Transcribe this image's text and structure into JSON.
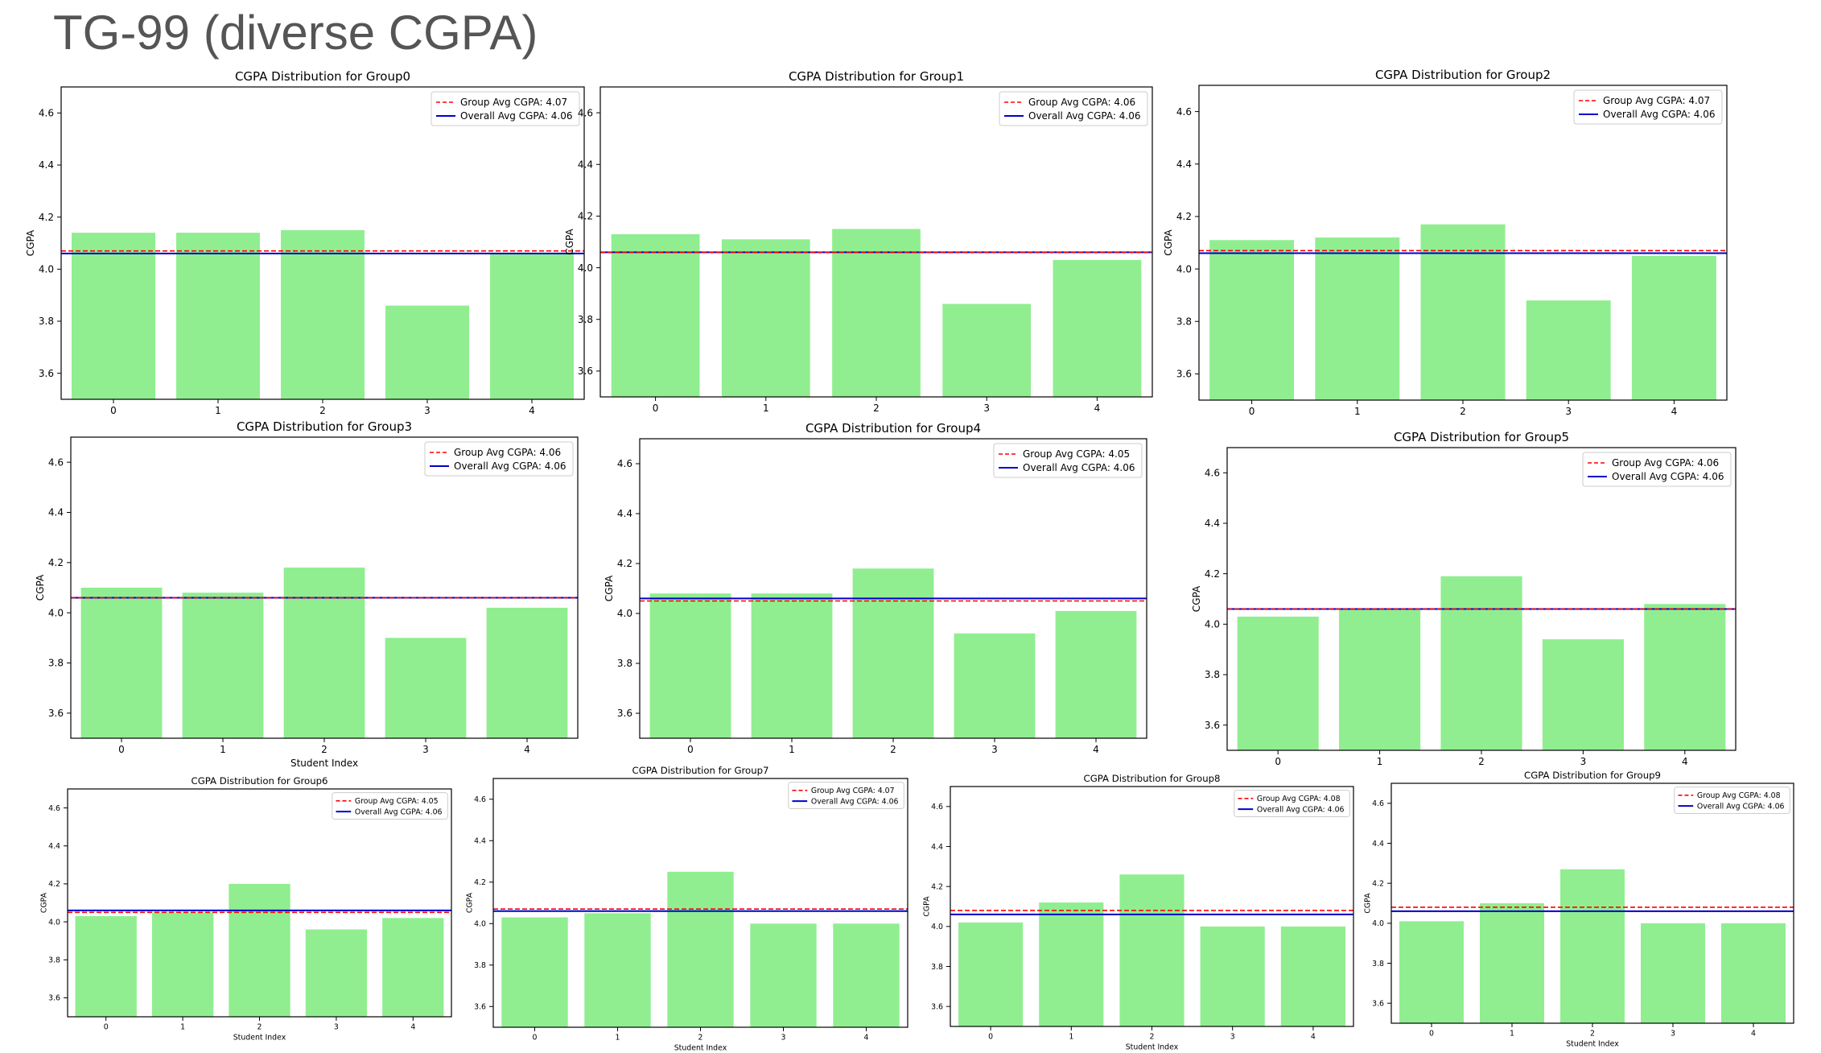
{
  "page_title": "TG-99 (diverse CGPA)",
  "colors": {
    "bar": "#90ee90",
    "group_avg": "#ff0000",
    "overall_avg": "#0000cc"
  },
  "chart_data": [
    {
      "type": "bar",
      "title": "CGPA Distribution for Group0",
      "xlabel": "",
      "ylabel": "CGPA",
      "categories": [
        "0",
        "1",
        "2",
        "3",
        "4"
      ],
      "values": [
        4.14,
        4.14,
        4.15,
        3.86,
        4.06
      ],
      "ylim": [
        3.5,
        4.7
      ],
      "yticks": [
        "3.6",
        "3.8",
        "4.0",
        "4.2",
        "4.4",
        "4.6"
      ],
      "group_avg": 4.07,
      "overall_avg": 4.06,
      "legend": [
        "Group Avg CGPA: 4.07",
        "Overall Avg CGPA: 4.06"
      ],
      "legend_position": "top-right"
    },
    {
      "type": "bar",
      "title": "CGPA Distribution for Group1",
      "xlabel": "",
      "ylabel": "CGPA",
      "categories": [
        "0",
        "1",
        "2",
        "3",
        "4"
      ],
      "values": [
        4.13,
        4.11,
        4.15,
        3.86,
        4.03
      ],
      "ylim": [
        3.5,
        4.7
      ],
      "yticks": [
        "3.6",
        "3.8",
        "4.0",
        "4.2",
        "4.4",
        "4.6"
      ],
      "group_avg": 4.06,
      "overall_avg": 4.06,
      "legend": [
        "Group Avg CGPA: 4.06",
        "Overall Avg CGPA: 4.06"
      ],
      "legend_position": "top-right"
    },
    {
      "type": "bar",
      "title": "CGPA Distribution for Group2",
      "xlabel": "",
      "ylabel": "CGPA",
      "categories": [
        "0",
        "1",
        "2",
        "3",
        "4"
      ],
      "values": [
        4.11,
        4.12,
        4.17,
        3.88,
        4.05
      ],
      "ylim": [
        3.5,
        4.7
      ],
      "yticks": [
        "3.6",
        "3.8",
        "4.0",
        "4.2",
        "4.4",
        "4.6"
      ],
      "group_avg": 4.07,
      "overall_avg": 4.06,
      "legend": [
        "Group Avg CGPA: 4.07",
        "Overall Avg CGPA: 4.06"
      ],
      "legend_position": "top-right"
    },
    {
      "type": "bar",
      "title": "CGPA Distribution for Group3",
      "xlabel": "Student Index",
      "ylabel": "CGPA",
      "categories": [
        "0",
        "1",
        "2",
        "3",
        "4"
      ],
      "values": [
        4.1,
        4.08,
        4.18,
        3.9,
        4.02
      ],
      "ylim": [
        3.5,
        4.7
      ],
      "yticks": [
        "3.6",
        "3.8",
        "4.0",
        "4.2",
        "4.4",
        "4.6"
      ],
      "group_avg": 4.06,
      "overall_avg": 4.06,
      "legend": [
        "Group Avg CGPA: 4.06",
        "Overall Avg CGPA: 4.06"
      ],
      "legend_position": "top-right"
    },
    {
      "type": "bar",
      "title": "CGPA Distribution for Group4",
      "xlabel": "",
      "ylabel": "CGPA",
      "categories": [
        "0",
        "1",
        "2",
        "3",
        "4"
      ],
      "values": [
        4.08,
        4.08,
        4.18,
        3.92,
        4.01
      ],
      "ylim": [
        3.5,
        4.7
      ],
      "yticks": [
        "3.6",
        "3.8",
        "4.0",
        "4.2",
        "4.4",
        "4.6"
      ],
      "group_avg": 4.05,
      "overall_avg": 4.06,
      "legend": [
        "Group Avg CGPA: 4.05",
        "Overall Avg CGPA: 4.06"
      ],
      "legend_position": "top-right"
    },
    {
      "type": "bar",
      "title": "CGPA Distribution for Group5",
      "xlabel": "",
      "ylabel": "CGPA",
      "categories": [
        "0",
        "1",
        "2",
        "3",
        "4"
      ],
      "values": [
        4.03,
        4.06,
        4.19,
        3.94,
        4.08
      ],
      "ylim": [
        3.5,
        4.7
      ],
      "yticks": [
        "3.6",
        "3.8",
        "4.0",
        "4.2",
        "4.4",
        "4.6"
      ],
      "group_avg": 4.06,
      "overall_avg": 4.06,
      "legend": [
        "Group Avg CGPA: 4.06",
        "Overall Avg CGPA: 4.06"
      ],
      "legend_position": "top-right"
    },
    {
      "type": "bar",
      "title": "CGPA Distribution for Group6",
      "xlabel": "Student Index",
      "ylabel": "CGPA",
      "categories": [
        "0",
        "1",
        "2",
        "3",
        "4"
      ],
      "values": [
        4.03,
        4.05,
        4.2,
        3.96,
        4.02
      ],
      "ylim": [
        3.5,
        4.7
      ],
      "yticks": [
        "3.6",
        "3.8",
        "4.0",
        "4.2",
        "4.4",
        "4.6"
      ],
      "group_avg": 4.05,
      "overall_avg": 4.06,
      "legend": [
        "Group Avg CGPA: 4.05",
        "Overall Avg CGPA: 4.06"
      ],
      "legend_position": "top-right"
    },
    {
      "type": "bar",
      "title": "CGPA Distribution for Group7",
      "xlabel": "Student Index",
      "ylabel": "CGPA",
      "categories": [
        "0",
        "1",
        "2",
        "3",
        "4"
      ],
      "values": [
        4.03,
        4.05,
        4.25,
        4.0,
        4.0
      ],
      "ylim": [
        3.5,
        4.7
      ],
      "yticks": [
        "3.6",
        "3.8",
        "4.0",
        "4.2",
        "4.4",
        "4.6"
      ],
      "group_avg": 4.07,
      "overall_avg": 4.06,
      "legend": [
        "Group Avg CGPA: 4.07",
        "Overall Avg CGPA: 4.06"
      ],
      "legend_position": "top-right"
    },
    {
      "type": "bar",
      "title": "CGPA Distribution for Group8",
      "xlabel": "Student Index",
      "ylabel": "CGPA",
      "categories": [
        "0",
        "1",
        "2",
        "3",
        "4"
      ],
      "values": [
        4.02,
        4.12,
        4.26,
        4.0,
        4.0
      ],
      "ylim": [
        3.5,
        4.7
      ],
      "yticks": [
        "3.6",
        "3.8",
        "4.0",
        "4.2",
        "4.4",
        "4.6"
      ],
      "group_avg": 4.08,
      "overall_avg": 4.06,
      "legend": [
        "Group Avg CGPA: 4.08",
        "Overall Avg CGPA: 4.06"
      ],
      "legend_position": "top-right"
    },
    {
      "type": "bar",
      "title": "CGPA Distribution for Group9",
      "xlabel": "Student Index",
      "ylabel": "CGPA",
      "categories": [
        "0",
        "1",
        "2",
        "3",
        "4"
      ],
      "values": [
        4.01,
        4.1,
        4.27,
        4.0,
        4.0
      ],
      "ylim": [
        3.5,
        4.7
      ],
      "yticks": [
        "3.6",
        "3.8",
        "4.0",
        "4.2",
        "4.4",
        "4.6"
      ],
      "group_avg": 4.08,
      "overall_avg": 4.06,
      "legend": [
        "Group Avg CGPA: 4.08",
        "Overall Avg CGPA: 4.06"
      ],
      "legend_position": "top-right"
    }
  ]
}
